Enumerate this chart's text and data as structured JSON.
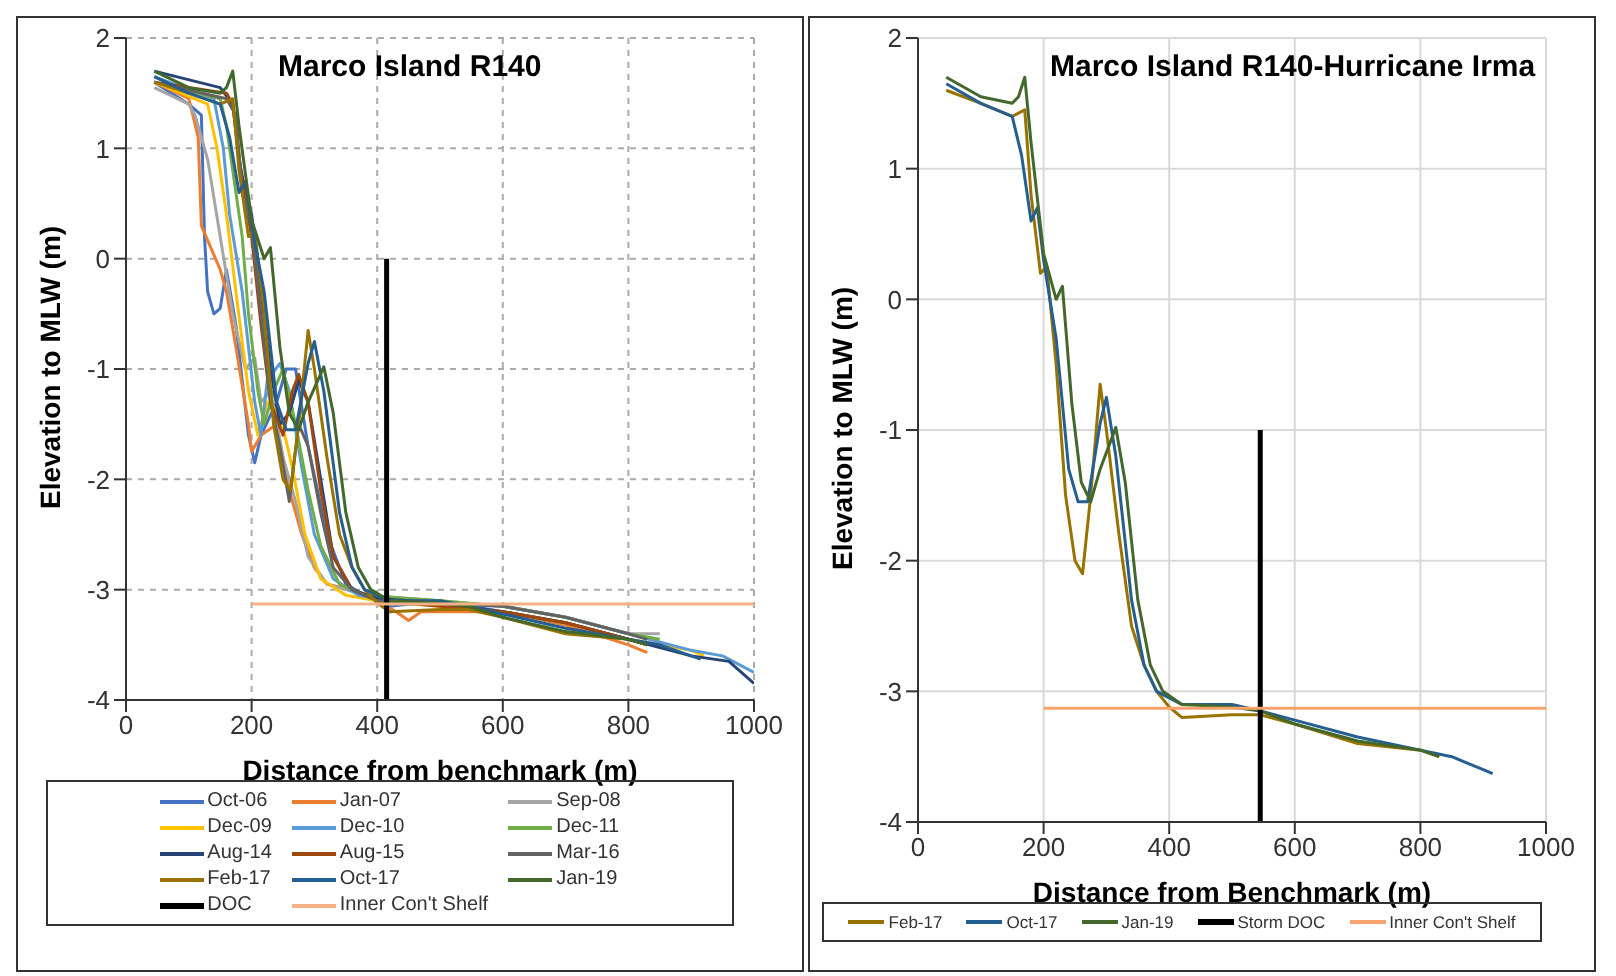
{
  "chart_data": [
    {
      "type": "line",
      "title": "Marco Island R140",
      "xlabel": "Distance from benchmark (m)",
      "ylabel": "Elevation to MLW (m)",
      "xlim": [
        0,
        1000
      ],
      "xticks": [
        0,
        200,
        400,
        600,
        800,
        1000
      ],
      "ylim": [
        -4,
        2
      ],
      "yticks": [
        -4,
        -3,
        -2,
        -1,
        0,
        1,
        2
      ],
      "grid": true,
      "legend": "bottom",
      "series": [
        {
          "name": "Oct-06",
          "color": "#4472c4",
          "x": [
            45,
            100,
            120,
            125,
            130,
            140,
            150,
            160,
            175,
            195,
            205,
            215,
            240,
            255,
            270,
            290,
            320,
            350,
            380,
            400,
            420,
            500,
            600,
            700,
            800,
            840
          ],
          "values": [
            1.6,
            1.4,
            1.3,
            0.2,
            -0.3,
            -0.5,
            -0.45,
            -0.1,
            -0.6,
            -1.6,
            -1.85,
            -1.6,
            -1.3,
            -1.0,
            -1.0,
            -1.7,
            -2.5,
            -2.95,
            -3.05,
            -3.1,
            -3.15,
            -3.1,
            -3.2,
            -3.3,
            -3.45,
            -3.5
          ]
        },
        {
          "name": "Jan-07",
          "color": "#ed7d31",
          "x": [
            45,
            100,
            115,
            120,
            135,
            150,
            160,
            175,
            195,
            200,
            215,
            240,
            260,
            280,
            300,
            320,
            360,
            400,
            430,
            450,
            470,
            600,
            700,
            800,
            830
          ],
          "values": [
            1.6,
            1.45,
            1.1,
            0.3,
            0.1,
            -0.1,
            -0.3,
            -0.8,
            -1.5,
            -1.75,
            -1.6,
            -1.5,
            -2.1,
            -2.5,
            -2.8,
            -2.95,
            -3.0,
            -3.1,
            -3.2,
            -3.28,
            -3.2,
            -3.2,
            -3.32,
            -3.5,
            -3.57
          ]
        },
        {
          "name": "Sep-08",
          "color": "#a5a5a5",
          "x": [
            45,
            100,
            110,
            130,
            150,
            170,
            190,
            205,
            215,
            230,
            250,
            270,
            290,
            320,
            380,
            500,
            600,
            700,
            800,
            850
          ],
          "values": [
            1.55,
            1.4,
            1.3,
            0.9,
            0.2,
            -0.5,
            -1.0,
            -0.9,
            -1.3,
            -1.2,
            -1.8,
            -2.2,
            -2.7,
            -2.95,
            -3.05,
            -3.1,
            -3.15,
            -3.25,
            -3.4,
            -3.4
          ]
        },
        {
          "name": "Dec-09",
          "color": "#ffc000",
          "x": [
            45,
            130,
            145,
            160,
            175,
            195,
            210,
            225,
            245,
            265,
            285,
            310,
            350,
            400,
            600,
            700,
            800,
            900,
            920
          ],
          "values": [
            1.6,
            1.4,
            1.0,
            0.4,
            -0.3,
            -1.2,
            -1.6,
            -1.3,
            -1.4,
            -1.9,
            -2.5,
            -2.9,
            -3.05,
            -3.1,
            -3.2,
            -3.3,
            -3.45,
            -3.55,
            -3.6
          ]
        },
        {
          "name": "Dec-10",
          "color": "#5b9bd5",
          "x": [
            45,
            140,
            155,
            165,
            185,
            205,
            215,
            225,
            245,
            260,
            280,
            300,
            330,
            370,
            420,
            600,
            700,
            800,
            900,
            950,
            1000
          ],
          "values": [
            1.65,
            1.45,
            1.0,
            0.4,
            -0.3,
            -1.3,
            -1.6,
            -1.1,
            -0.95,
            -1.2,
            -1.9,
            -2.5,
            -2.9,
            -3.05,
            -3.1,
            -3.15,
            -3.25,
            -3.4,
            -3.55,
            -3.6,
            -3.75
          ]
        },
        {
          "name": "Dec-11",
          "color": "#70ad47",
          "x": [
            45,
            150,
            160,
            175,
            185,
            195,
            210,
            220,
            235,
            250,
            270,
            290,
            310,
            340,
            380,
            500,
            600,
            700,
            800,
            850
          ],
          "values": [
            1.6,
            1.45,
            1.2,
            0.6,
            0.2,
            -0.5,
            -1.2,
            -1.5,
            -1.2,
            -1.0,
            -1.5,
            -2.1,
            -2.6,
            -2.95,
            -3.05,
            -3.1,
            -3.15,
            -3.25,
            -3.4,
            -3.45
          ]
        },
        {
          "name": "Aug-14",
          "color": "#264478",
          "x": [
            45,
            150,
            170,
            180,
            190,
            200,
            215,
            230,
            245,
            260,
            275,
            290,
            310,
            330,
            360,
            400,
            500,
            600,
            700,
            800,
            900,
            960,
            1000
          ],
          "values": [
            1.7,
            1.55,
            1.4,
            0.9,
            0.6,
            0.4,
            -0.3,
            -1.0,
            -1.5,
            -1.4,
            -1.1,
            -1.3,
            -2.0,
            -2.7,
            -3.0,
            -3.08,
            -3.12,
            -3.2,
            -3.3,
            -3.45,
            -3.6,
            -3.65,
            -3.85
          ]
        },
        {
          "name": "Aug-15",
          "color": "#9e480e",
          "x": [
            45,
            160,
            170,
            185,
            200,
            215,
            230,
            250,
            265,
            275,
            290,
            310,
            330,
            360,
            400,
            600,
            700,
            800,
            830
          ],
          "values": [
            1.6,
            1.5,
            1.4,
            0.7,
            0.2,
            -0.6,
            -1.3,
            -1.6,
            -1.2,
            -1.05,
            -1.3,
            -2.1,
            -2.7,
            -3.0,
            -3.1,
            -3.2,
            -3.3,
            -3.45,
            -3.5
          ]
        },
        {
          "name": "Mar-16",
          "color": "#636363",
          "x": [
            45,
            160,
            175,
            185,
            200,
            215,
            230,
            245,
            260,
            275,
            290,
            310,
            330,
            360,
            400,
            600,
            700,
            800,
            830
          ],
          "values": [
            1.6,
            1.45,
            1.3,
            0.6,
            0.3,
            -0.5,
            -1.3,
            -1.7,
            -2.2,
            -1.5,
            -1.7,
            -2.3,
            -2.8,
            -3.0,
            -3.1,
            -3.15,
            -3.25,
            -3.4,
            -3.45
          ]
        },
        {
          "name": "Feb-17",
          "color": "#997300",
          "x": [
            45,
            100,
            150,
            170,
            180,
            195,
            205,
            220,
            235,
            250,
            262,
            275,
            290,
            300,
            320,
            340,
            360,
            380,
            400,
            420,
            500,
            545,
            600,
            700,
            800,
            830
          ],
          "values": [
            1.6,
            1.5,
            1.4,
            1.45,
            0.8,
            0.2,
            0.25,
            -0.5,
            -1.5,
            -2.0,
            -2.1,
            -1.5,
            -0.65,
            -1.0,
            -1.8,
            -2.5,
            -2.8,
            -3.0,
            -3.12,
            -3.2,
            -3.18,
            -3.18,
            -3.25,
            -3.4,
            -3.45,
            -3.5
          ]
        },
        {
          "name": "Oct-17",
          "color": "#255e91",
          "x": [
            45,
            100,
            150,
            165,
            180,
            190,
            200,
            220,
            240,
            255,
            270,
            290,
            300,
            315,
            340,
            360,
            380,
            420,
            500,
            545,
            600,
            700,
            800,
            850,
            900,
            915
          ],
          "values": [
            1.65,
            1.5,
            1.4,
            1.1,
            0.6,
            0.7,
            0.3,
            -0.3,
            -1.3,
            -1.55,
            -1.55,
            -0.95,
            -0.75,
            -1.2,
            -2.3,
            -2.8,
            -3.0,
            -3.1,
            -3.1,
            -3.15,
            -3.22,
            -3.35,
            -3.45,
            -3.5,
            -3.6,
            -3.63
          ]
        },
        {
          "name": "Jan-19",
          "color": "#43682b",
          "x": [
            45,
            100,
            150,
            160,
            170,
            180,
            200,
            220,
            230,
            245,
            260,
            275,
            290,
            315,
            330,
            350,
            370,
            390,
            420,
            500,
            545,
            600,
            700,
            800,
            830
          ],
          "values": [
            1.7,
            1.55,
            1.5,
            1.55,
            1.7,
            1.2,
            0.35,
            0.0,
            0.1,
            -0.8,
            -1.4,
            -1.55,
            -1.3,
            -0.98,
            -1.4,
            -2.3,
            -2.8,
            -3.0,
            -3.1,
            -3.12,
            -3.15,
            -3.25,
            -3.38,
            -3.45,
            -3.5
          ]
        },
        {
          "name": "DOC",
          "color": "#000000",
          "x": [
            415,
            415
          ],
          "values": [
            0,
            -4
          ]
        },
        {
          "name": "Inner Con't Shelf",
          "color": "#f4b183",
          "x": [
            200,
            1000
          ],
          "values": [
            -3.13,
            -3.13
          ]
        }
      ]
    },
    {
      "type": "line",
      "title": "Marco Island R140-Hurricane Irma",
      "xlabel": "Distance from Benchmark (m)",
      "ylabel": "Elevation to MLW (m)",
      "xlim": [
        0,
        1000
      ],
      "xticks": [
        0,
        200,
        400,
        600,
        800,
        1000
      ],
      "ylim": [
        -4,
        2
      ],
      "yticks": [
        -4,
        -3,
        -2,
        -1,
        0,
        1,
        2
      ],
      "grid": true,
      "legend": "bottom",
      "series": [
        {
          "name": "Feb-17",
          "color": "#997300",
          "x": [
            45,
            100,
            150,
            170,
            180,
            195,
            205,
            220,
            235,
            250,
            262,
            275,
            290,
            300,
            320,
            340,
            360,
            380,
            400,
            420,
            500,
            545,
            600,
            700,
            800,
            830
          ],
          "values": [
            1.6,
            1.5,
            1.4,
            1.45,
            0.8,
            0.2,
            0.25,
            -0.5,
            -1.5,
            -2.0,
            -2.1,
            -1.5,
            -0.65,
            -1.0,
            -1.8,
            -2.5,
            -2.8,
            -3.0,
            -3.12,
            -3.2,
            -3.18,
            -3.18,
            -3.25,
            -3.4,
            -3.45,
            -3.5
          ]
        },
        {
          "name": "Oct-17",
          "color": "#255e91",
          "x": [
            45,
            100,
            150,
            165,
            180,
            190,
            200,
            220,
            240,
            255,
            270,
            290,
            300,
            315,
            340,
            360,
            380,
            420,
            500,
            545,
            600,
            700,
            800,
            850,
            900,
            915
          ],
          "values": [
            1.65,
            1.5,
            1.4,
            1.1,
            0.6,
            0.7,
            0.3,
            -0.3,
            -1.3,
            -1.55,
            -1.55,
            -0.95,
            -0.75,
            -1.2,
            -2.3,
            -2.8,
            -3.0,
            -3.1,
            -3.1,
            -3.15,
            -3.22,
            -3.35,
            -3.45,
            -3.5,
            -3.6,
            -3.63
          ]
        },
        {
          "name": "Jan-19",
          "color": "#43682b",
          "x": [
            45,
            100,
            150,
            160,
            170,
            180,
            200,
            220,
            230,
            245,
            260,
            275,
            290,
            315,
            330,
            350,
            370,
            390,
            420,
            500,
            545,
            600,
            700,
            800,
            830
          ],
          "values": [
            1.7,
            1.55,
            1.5,
            1.55,
            1.7,
            1.2,
            0.35,
            0.0,
            0.1,
            -0.8,
            -1.4,
            -1.55,
            -1.3,
            -0.98,
            -1.4,
            -2.3,
            -2.8,
            -3.0,
            -3.1,
            -3.12,
            -3.15,
            -3.25,
            -3.38,
            -3.45,
            -3.5
          ]
        },
        {
          "name": "Storm DOC",
          "color": "#000000",
          "x": [
            545,
            545
          ],
          "values": [
            -1,
            -4
          ]
        },
        {
          "name": "Inner Con't Shelf",
          "color": "#f8a36b",
          "x": [
            200,
            1000
          ],
          "values": [
            -3.13,
            -3.13
          ]
        }
      ]
    }
  ]
}
